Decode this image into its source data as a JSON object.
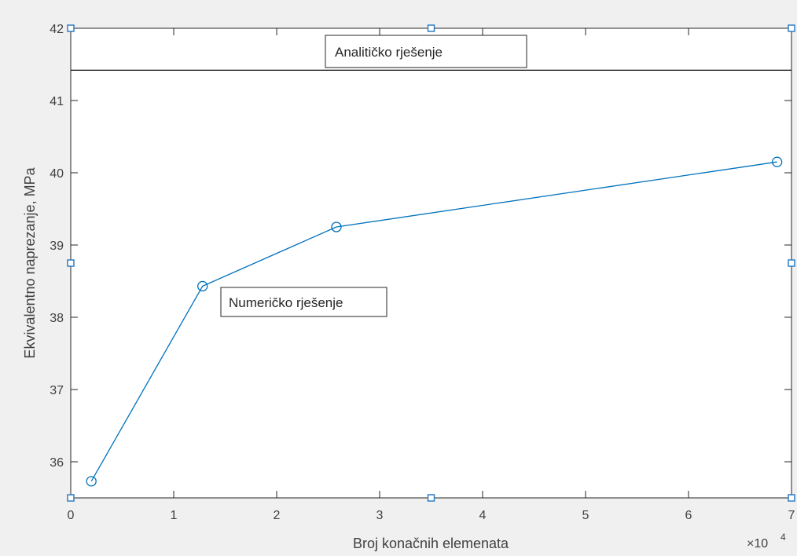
{
  "chart_data": {
    "type": "line",
    "xlabel": "Broj konačnih elemenata",
    "ylabel": "Ekvivalentno naprezanje, MPa",
    "x_exponent_label": "×10",
    "x_exponent_power": "4",
    "xlim": [
      0,
      70000
    ],
    "ylim": [
      35.5,
      42
    ],
    "x_ticks": [
      0,
      10000,
      20000,
      30000,
      40000,
      50000,
      60000,
      70000
    ],
    "x_tick_labels": [
      "0",
      "1",
      "2",
      "3",
      "4",
      "5",
      "6",
      "7"
    ],
    "y_ticks": [
      36,
      37,
      38,
      39,
      40,
      41,
      42
    ],
    "y_tick_labels": [
      "36",
      "37",
      "38",
      "39",
      "40",
      "41",
      "42"
    ],
    "grid": false,
    "series": [
      {
        "color": "#0072bd",
        "marker": "circle",
        "x": [
          2000,
          12800,
          25800,
          68600
        ],
        "y": [
          35.73,
          38.43,
          39.25,
          40.15
        ]
      },
      {
        "color": "#000000",
        "marker": "none",
        "x": [
          0,
          70000
        ],
        "y": [
          41.42,
          41.42
        ]
      }
    ],
    "annotations": [
      {
        "text": "Analitičko rješenje"
      },
      {
        "text": "Numeričko rješenje"
      }
    ],
    "selection_handle_color": "#2f7ec4"
  }
}
